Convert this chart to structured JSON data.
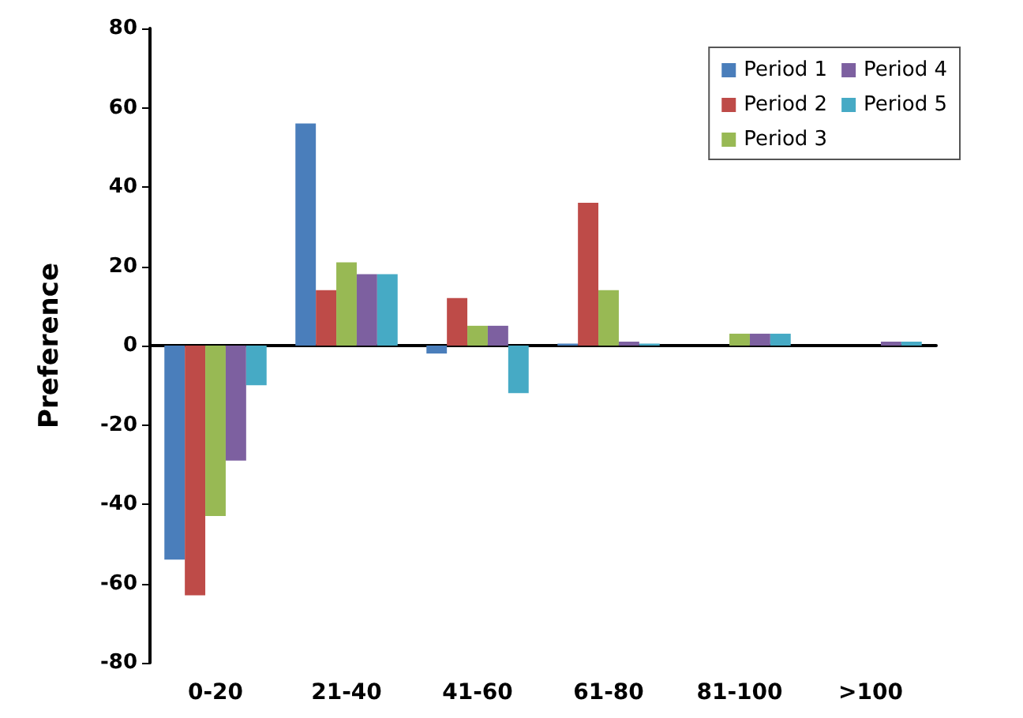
{
  "chart_data": {
    "type": "bar",
    "ylabel": "Preference",
    "categories": [
      "0-20",
      "21-40",
      "41-60",
      "61-80",
      "81-100",
      ">100"
    ],
    "series": [
      {
        "name": "Period 1",
        "color": "#4a7ebb",
        "values": [
          -54,
          56,
          -2,
          0.5,
          0,
          0
        ]
      },
      {
        "name": "Period 2",
        "color": "#be4b48",
        "values": [
          -63,
          14,
          12,
          36,
          0,
          0
        ]
      },
      {
        "name": "Period 3",
        "color": "#98b954",
        "values": [
          -43,
          21,
          5,
          14,
          3,
          0
        ]
      },
      {
        "name": "Period 4",
        "color": "#7d60a0",
        "values": [
          -29,
          18,
          5,
          1,
          3,
          1
        ]
      },
      {
        "name": "Period 5",
        "color": "#46aac5",
        "values": [
          -10,
          18,
          -12,
          0.5,
          3,
          1
        ]
      }
    ],
    "ylim": [
      -80,
      80
    ],
    "yticks": [
      -80,
      -60,
      -40,
      -20,
      0,
      20,
      40,
      60,
      80
    ],
    "legend": "top right"
  }
}
